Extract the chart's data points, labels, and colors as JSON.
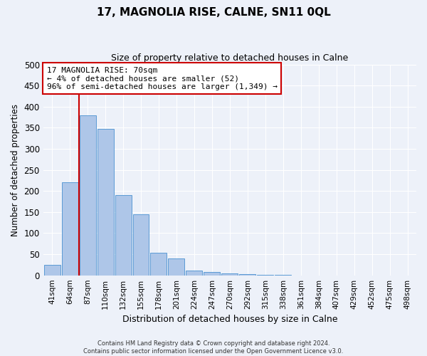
{
  "title": "17, MAGNOLIA RISE, CALNE, SN11 0QL",
  "subtitle": "Size of property relative to detached houses in Calne",
  "xlabel": "Distribution of detached houses by size in Calne",
  "ylabel": "Number of detached properties",
  "bar_labels": [
    "41sqm",
    "64sqm",
    "87sqm",
    "110sqm",
    "132sqm",
    "155sqm",
    "178sqm",
    "201sqm",
    "224sqm",
    "247sqm",
    "270sqm",
    "292sqm",
    "315sqm",
    "338sqm",
    "361sqm",
    "384sqm",
    "407sqm",
    "429sqm",
    "452sqm",
    "475sqm",
    "498sqm"
  ],
  "bar_values": [
    25,
    220,
    380,
    348,
    190,
    145,
    53,
    40,
    12,
    8,
    5,
    3,
    1,
    1,
    0,
    0,
    0,
    0,
    0,
    0,
    0
  ],
  "bar_color": "#aec6e8",
  "bar_edgecolor": "#5b9bd5",
  "ylim": [
    0,
    500
  ],
  "yticks": [
    0,
    50,
    100,
    150,
    200,
    250,
    300,
    350,
    400,
    450,
    500
  ],
  "vline_color": "#cc0000",
  "annotation_title": "17 MAGNOLIA RISE: 70sqm",
  "annotation_line1": "← 4% of detached houses are smaller (52)",
  "annotation_line2": "96% of semi-detached houses are larger (1,349) →",
  "annotation_box_color": "#ffffff",
  "annotation_box_edgecolor": "#cc0000",
  "footer_line1": "Contains HM Land Registry data © Crown copyright and database right 2024.",
  "footer_line2": "Contains public sector information licensed under the Open Government Licence v3.0.",
  "background_color": "#edf1f9",
  "grid_color": "#ffffff"
}
